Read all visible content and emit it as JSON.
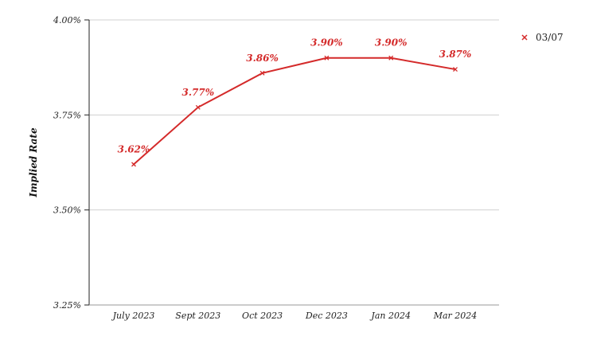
{
  "chart_data": {
    "type": "line",
    "title": "",
    "xlabel": "",
    "ylabel": "Implied Rate",
    "ylim": [
      3.25,
      4.0
    ],
    "yticks": [
      {
        "value": 3.25,
        "label": "3.25%"
      },
      {
        "value": 3.5,
        "label": "3.50%"
      },
      {
        "value": 3.75,
        "label": "3.75%"
      },
      {
        "value": 4.0,
        "label": "4.00%"
      }
    ],
    "grid": true,
    "legend": "top-right",
    "color": "#d42a2a",
    "categories": [
      "July 2023",
      "Sept 2023",
      "Oct 2023",
      "Dec 2023",
      "Jan 2024",
      "Mar 2024"
    ],
    "series": [
      {
        "name": "03/07",
        "values": [
          3.62,
          3.77,
          3.86,
          3.9,
          3.9,
          3.87
        ],
        "labels": [
          "3.62%",
          "3.77%",
          "3.86%",
          "3.90%",
          "3.90%",
          "3.87%"
        ]
      }
    ]
  }
}
